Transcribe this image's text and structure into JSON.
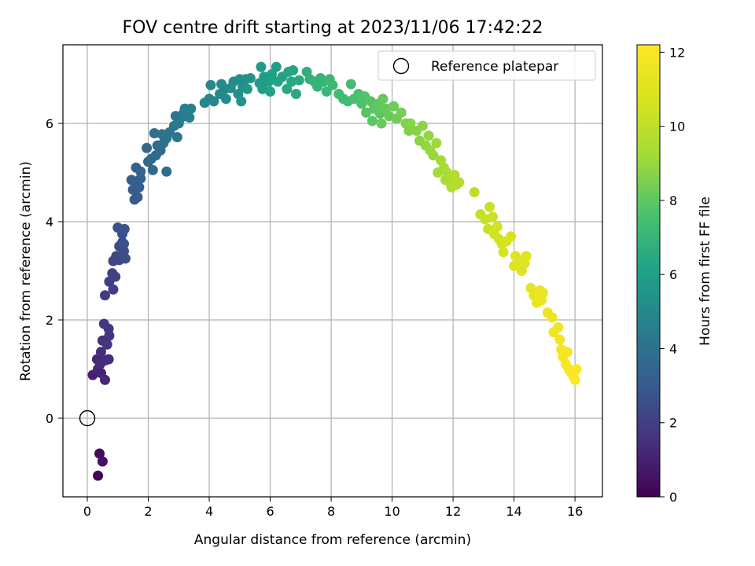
{
  "chart_data": {
    "type": "scatter",
    "title": "FOV centre drift starting at 2023/11/06 17:42:22",
    "xlabel": "Angular distance from reference (arcmin)",
    "ylabel": "Rotation from reference (arcmin)",
    "xlim": [
      -0.8,
      16.9
    ],
    "ylim": [
      -1.6,
      7.6
    ],
    "xticks": [
      0,
      2,
      4,
      6,
      8,
      10,
      12,
      14,
      16
    ],
    "yticks": [
      0,
      2,
      4,
      6
    ],
    "grid": true,
    "legend": {
      "position": "top-right",
      "entries": [
        {
          "label": "Reference platepar",
          "marker": "open-circle"
        }
      ]
    },
    "reference_point": {
      "x": 0,
      "y": 0
    },
    "colorbar": {
      "label": "Hours from first FF file",
      "range": [
        0,
        12.2
      ],
      "ticks": [
        0,
        2,
        4,
        6,
        8,
        10,
        12
      ],
      "colormap": "viridis"
    },
    "points": [
      [
        0.35,
        -1.17,
        0.1
      ],
      [
        0.4,
        -0.72,
        0.3
      ],
      [
        0.5,
        -0.88,
        0.5
      ],
      [
        0.18,
        0.88,
        1.0
      ],
      [
        0.35,
        1.0,
        1.1
      ],
      [
        0.45,
        0.92,
        1.1
      ],
      [
        0.58,
        0.78,
        1.2
      ],
      [
        0.32,
        1.2,
        1.2
      ],
      [
        0.42,
        1.1,
        1.3
      ],
      [
        0.6,
        1.18,
        1.3
      ],
      [
        0.45,
        1.35,
        1.4
      ],
      [
        0.7,
        1.2,
        1.4
      ],
      [
        0.5,
        1.58,
        1.5
      ],
      [
        0.65,
        1.5,
        1.6
      ],
      [
        0.72,
        1.68,
        1.6
      ],
      [
        0.55,
        1.92,
        1.7
      ],
      [
        0.7,
        1.82,
        1.7
      ],
      [
        0.58,
        2.5,
        1.9
      ],
      [
        0.72,
        2.78,
        2.0
      ],
      [
        0.85,
        2.62,
        2.0
      ],
      [
        0.82,
        2.95,
        2.1
      ],
      [
        0.92,
        2.88,
        2.1
      ],
      [
        0.85,
        3.2,
        2.2
      ],
      [
        0.95,
        3.3,
        2.3
      ],
      [
        1.05,
        3.22,
        2.3
      ],
      [
        1.05,
        3.5,
        2.4
      ],
      [
        1.15,
        3.58,
        2.4
      ],
      [
        1.2,
        3.4,
        2.5
      ],
      [
        1.25,
        3.25,
        2.5
      ],
      [
        1.0,
        3.88,
        2.6
      ],
      [
        1.15,
        3.75,
        2.6
      ],
      [
        1.22,
        3.85,
        2.7
      ],
      [
        1.2,
        3.55,
        2.7
      ],
      [
        1.55,
        4.45,
        3.0
      ],
      [
        1.65,
        4.5,
        3.0
      ],
      [
        1.5,
        4.65,
        3.1
      ],
      [
        1.7,
        4.7,
        3.1
      ],
      [
        1.45,
        4.85,
        3.2
      ],
      [
        1.62,
        4.82,
        3.2
      ],
      [
        1.75,
        4.88,
        3.3
      ],
      [
        1.6,
        5.1,
        3.3
      ],
      [
        1.75,
        5.02,
        3.4
      ],
      [
        1.95,
        5.5,
        3.5
      ],
      [
        2.0,
        5.22,
        3.5
      ],
      [
        2.15,
        5.05,
        3.6
      ],
      [
        2.1,
        5.28,
        3.6
      ],
      [
        2.25,
        5.35,
        3.7
      ],
      [
        2.4,
        5.45,
        3.7
      ],
      [
        2.3,
        5.55,
        3.8
      ],
      [
        2.6,
        5.02,
        3.8
      ],
      [
        2.5,
        5.6,
        3.9
      ],
      [
        2.2,
        5.8,
        3.9
      ],
      [
        2.6,
        5.7,
        4.0
      ],
      [
        2.45,
        5.78,
        4.0
      ],
      [
        2.7,
        5.82,
        4.1
      ],
      [
        2.95,
        5.72,
        4.1
      ],
      [
        2.85,
        5.95,
        4.2
      ],
      [
        2.9,
        6.15,
        4.2
      ],
      [
        3.05,
        6.1,
        4.3
      ],
      [
        3.15,
        6.2,
        4.3
      ],
      [
        3.0,
        6.0,
        4.4
      ],
      [
        3.25,
        6.15,
        4.4
      ],
      [
        3.2,
        6.3,
        4.5
      ],
      [
        3.4,
        6.3,
        4.5
      ],
      [
        3.35,
        6.12,
        4.6
      ],
      [
        3.85,
        6.42,
        4.8
      ],
      [
        4.0,
        6.5,
        4.8
      ],
      [
        4.15,
        6.45,
        4.9
      ],
      [
        4.05,
        6.78,
        4.9
      ],
      [
        4.35,
        6.6,
        5.0
      ],
      [
        4.5,
        6.7,
        5.0
      ],
      [
        4.4,
        6.8,
        5.1
      ],
      [
        4.55,
        6.5,
        5.1
      ],
      [
        4.7,
        6.72,
        5.2
      ],
      [
        4.8,
        6.85,
        5.2
      ],
      [
        4.95,
        6.6,
        5.3
      ],
      [
        5.0,
        6.9,
        5.3
      ],
      [
        5.1,
        6.75,
        5.4
      ],
      [
        5.2,
        6.9,
        5.4
      ],
      [
        5.05,
        6.45,
        5.5
      ],
      [
        5.35,
        6.92,
        5.5
      ],
      [
        5.25,
        6.7,
        5.6
      ],
      [
        5.65,
        6.82,
        5.8
      ],
      [
        5.7,
        7.15,
        5.8
      ],
      [
        5.8,
        6.95,
        5.9
      ],
      [
        5.75,
        6.7,
        5.9
      ],
      [
        5.95,
        6.85,
        6.0
      ],
      [
        6.05,
        7.0,
        6.0
      ],
      [
        6.0,
        6.65,
        6.1
      ],
      [
        6.2,
        7.15,
        6.1
      ],
      [
        6.25,
        6.85,
        6.2
      ],
      [
        6.4,
        6.95,
        6.2
      ],
      [
        6.6,
        7.05,
        6.3
      ],
      [
        6.75,
        7.08,
        6.3
      ],
      [
        6.55,
        6.7,
        6.4
      ],
      [
        6.7,
        6.85,
        6.4
      ],
      [
        6.85,
        6.6,
        6.5
      ],
      [
        6.95,
        6.88,
        6.5
      ],
      [
        7.2,
        7.05,
        6.8
      ],
      [
        7.3,
        6.9,
        6.8
      ],
      [
        7.45,
        6.85,
        6.9
      ],
      [
        7.65,
        6.92,
        6.9
      ],
      [
        7.55,
        6.75,
        7.0
      ],
      [
        7.75,
        6.85,
        7.0
      ],
      [
        7.85,
        6.65,
        7.1
      ],
      [
        7.95,
        6.9,
        7.1
      ],
      [
        8.05,
        6.78,
        7.2
      ],
      [
        8.25,
        6.6,
        7.3
      ],
      [
        8.4,
        6.5,
        7.3
      ],
      [
        8.65,
        6.8,
        7.4
      ],
      [
        8.55,
        6.45,
        7.4
      ],
      [
        8.75,
        6.5,
        7.6
      ],
      [
        8.9,
        6.6,
        7.6
      ],
      [
        9.0,
        6.4,
        7.7
      ],
      [
        9.1,
        6.55,
        7.7
      ],
      [
        9.15,
        6.22,
        7.8
      ],
      [
        9.3,
        6.45,
        7.8
      ],
      [
        9.4,
        6.3,
        7.9
      ],
      [
        9.35,
        6.05,
        7.9
      ],
      [
        9.55,
        6.4,
        8.0
      ],
      [
        9.6,
        6.2,
        8.0
      ],
      [
        9.7,
        6.5,
        8.1
      ],
      [
        9.8,
        6.3,
        8.1
      ],
      [
        9.65,
        6.0,
        8.2
      ],
      [
        9.9,
        6.15,
        8.2
      ],
      [
        10.05,
        6.35,
        8.3
      ],
      [
        10.15,
        6.1,
        8.3
      ],
      [
        10.3,
        6.22,
        8.4
      ],
      [
        10.45,
        6.0,
        8.6
      ],
      [
        10.55,
        5.85,
        8.6
      ],
      [
        10.6,
        6.0,
        8.7
      ],
      [
        10.8,
        5.85,
        8.7
      ],
      [
        10.9,
        5.65,
        8.8
      ],
      [
        11.0,
        5.95,
        8.8
      ],
      [
        11.1,
        5.55,
        8.9
      ],
      [
        11.2,
        5.75,
        8.9
      ],
      [
        11.25,
        5.45,
        9.0
      ],
      [
        11.35,
        5.35,
        9.0
      ],
      [
        11.45,
        5.6,
        9.1
      ],
      [
        11.5,
        5.0,
        9.3
      ],
      [
        11.6,
        5.25,
        9.3
      ],
      [
        11.7,
        5.1,
        9.4
      ],
      [
        11.75,
        4.85,
        9.4
      ],
      [
        11.8,
        5.0,
        9.5
      ],
      [
        11.9,
        4.8,
        9.5
      ],
      [
        11.95,
        4.7,
        9.6
      ],
      [
        12.05,
        4.95,
        9.6
      ],
      [
        12.1,
        4.75,
        9.7
      ],
      [
        12.2,
        4.8,
        9.7
      ],
      [
        12.7,
        4.6,
        9.9
      ],
      [
        12.9,
        4.15,
        10.2
      ],
      [
        13.05,
        4.05,
        10.2
      ],
      [
        13.15,
        3.85,
        10.3
      ],
      [
        13.2,
        4.3,
        10.3
      ],
      [
        13.3,
        4.1,
        10.4
      ],
      [
        13.35,
        3.75,
        10.5
      ],
      [
        13.5,
        3.65,
        10.5
      ],
      [
        13.45,
        3.9,
        10.6
      ],
      [
        13.6,
        3.55,
        10.6
      ],
      [
        13.65,
        3.38,
        10.7
      ],
      [
        13.75,
        3.6,
        10.7
      ],
      [
        13.9,
        3.7,
        10.8
      ],
      [
        14.0,
        3.1,
        10.9
      ],
      [
        14.05,
        3.3,
        10.9
      ],
      [
        14.15,
        3.2,
        11.0
      ],
      [
        14.25,
        3.0,
        11.0
      ],
      [
        14.35,
        3.15,
        11.1
      ],
      [
        14.4,
        3.3,
        11.1
      ],
      [
        14.55,
        2.65,
        11.3
      ],
      [
        14.65,
        2.5,
        11.3
      ],
      [
        14.75,
        2.35,
        11.4
      ],
      [
        14.85,
        2.6,
        11.4
      ],
      [
        14.9,
        2.4,
        11.5
      ],
      [
        14.95,
        2.55,
        11.5
      ],
      [
        15.1,
        2.15,
        11.6
      ],
      [
        15.25,
        2.05,
        11.6
      ],
      [
        15.3,
        1.75,
        11.7
      ],
      [
        15.45,
        1.85,
        11.7
      ],
      [
        15.5,
        1.6,
        11.8
      ],
      [
        15.55,
        1.4,
        11.8
      ],
      [
        15.6,
        1.25,
        11.9
      ],
      [
        15.7,
        1.1,
        11.9
      ],
      [
        15.75,
        1.35,
        11.9
      ],
      [
        15.8,
        1.0,
        12.0
      ],
      [
        15.85,
        0.95,
        12.0
      ],
      [
        15.95,
        0.85,
        12.1
      ],
      [
        16.05,
        1.0,
        12.1
      ],
      [
        16.0,
        0.78,
        12.1
      ]
    ]
  }
}
